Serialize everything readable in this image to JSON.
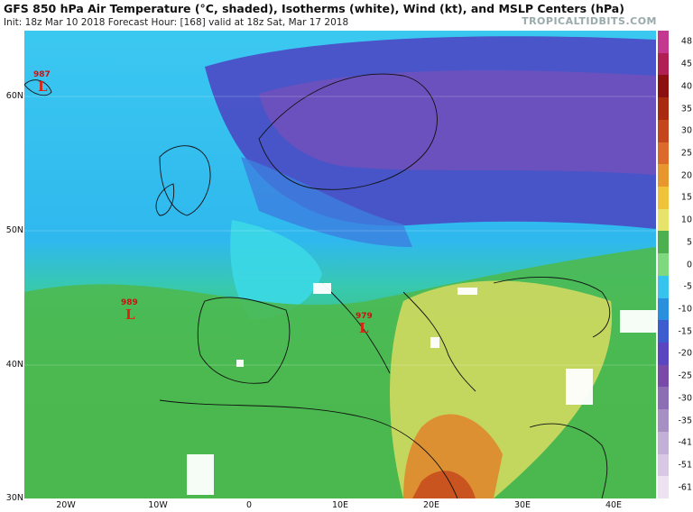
{
  "header": {
    "title": "GFS 850 hPa Air Temperature (°C, shaded), Isotherms (white), Wind (kt), and MSLP Centers (hPa)",
    "subtitle": "Init: 18z Mar 10 2018   Forecast Hour: [168]   valid at 18z Sat, Mar 17 2018",
    "brand": "TROPICALTIDBITS.COM"
  },
  "axes": {
    "lat_labels": [
      "60N",
      "50N",
      "40N",
      "30N"
    ],
    "lon_labels": [
      "20W",
      "10W",
      "0",
      "10E",
      "20E",
      "30E",
      "40E"
    ]
  },
  "colorbar": {
    "labels": [
      "48",
      "45",
      "40",
      "35",
      "30",
      "25",
      "20",
      "15",
      "10",
      "5",
      "0",
      "-5",
      "-10",
      "-15",
      "-20",
      "-25",
      "-30",
      "-35",
      "-41",
      "-51",
      "-61"
    ],
    "colors": [
      "#c2398f",
      "#b02052",
      "#8c1010",
      "#a82a10",
      "#c4461c",
      "#dc6a2a",
      "#e8962e",
      "#efc43a",
      "#e6e46a",
      "#4caf50",
      "#7ed87e",
      "#36c3ee",
      "#2a8fdc",
      "#3c5cd0",
      "#5a46c0",
      "#7a4aa8",
      "#8c6eb4",
      "#a78fc4",
      "#c2b0d6",
      "#d8c8e4",
      "#ece2f0"
    ]
  },
  "pressure_centers": [
    {
      "label": "L",
      "value": "987"
    },
    {
      "label": "L",
      "value": "989"
    },
    {
      "label": "L",
      "value": "979"
    }
  ]
}
